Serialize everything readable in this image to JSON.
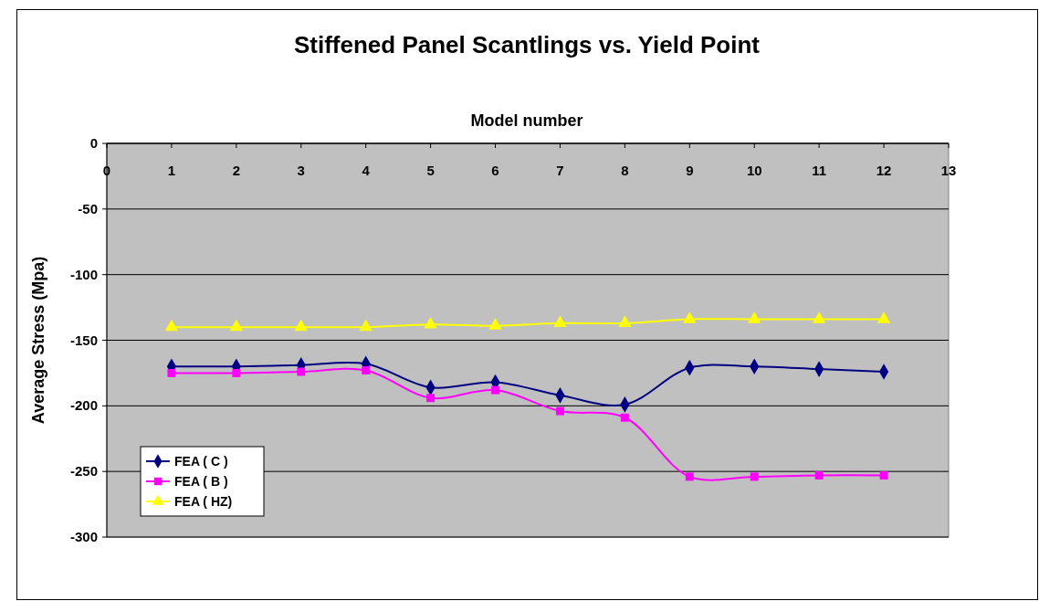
{
  "chart_data": {
    "type": "line",
    "title": "Stiffened Panel Scantlings vs. Yield Point",
    "xlabel": "Model number",
    "ylabel": "Average Stress (Mpa)",
    "x": [
      1,
      2,
      3,
      4,
      5,
      6,
      7,
      8,
      9,
      10,
      11,
      12
    ],
    "xlim": [
      0,
      13
    ],
    "xticks": [
      0,
      1,
      2,
      3,
      4,
      5,
      6,
      7,
      8,
      9,
      10,
      11,
      12,
      13
    ],
    "ylim": [
      -300,
      0
    ],
    "yticks": [
      -300,
      -250,
      -200,
      -150,
      -100,
      -50,
      0
    ],
    "grid": "y",
    "legend": "bottom left",
    "series": [
      {
        "name": "FEA ( C )",
        "color": "#000080",
        "marker": "diamond",
        "values": [
          -170,
          -170,
          -169,
          -168,
          -186,
          -182,
          -192,
          -199,
          -171,
          -170,
          -172,
          -174
        ]
      },
      {
        "name": "FEA ( B )",
        "color": "#ff00ff",
        "marker": "square",
        "values": [
          -175,
          -175,
          -174,
          -173,
          -194,
          -188,
          -204,
          -209,
          -254,
          -254,
          -253,
          -253
        ]
      },
      {
        "name": "FEA ( HZ)",
        "color": "#ffff00",
        "marker": "triangle",
        "values": [
          -140,
          -140,
          -140,
          -140,
          -138,
          -139,
          -137,
          -137,
          -134,
          -134,
          -134,
          -134
        ]
      }
    ]
  }
}
